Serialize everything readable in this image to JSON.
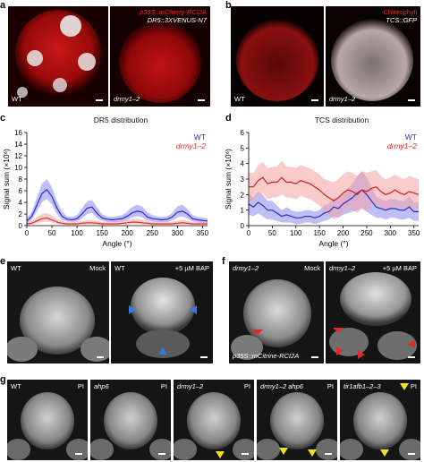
{
  "panels": {
    "a": {
      "label": "a",
      "left_label": "WT",
      "right_label": "drmy1–2",
      "marker_line1": "p35S::mCherry-RCI2A",
      "marker_line2": "DR5::3XVENUS-N7"
    },
    "b": {
      "label": "b",
      "left_label": "WT",
      "right_label": "drmy1–2",
      "marker_line1": "Chlorophyll",
      "marker_line2": "TCS::GFP"
    },
    "c": {
      "label": "c"
    },
    "d": {
      "label": "d"
    },
    "e": {
      "label": "e",
      "left_genotype": "WT",
      "left_treatment": "Mock",
      "right_genotype": "WT",
      "right_treatment": "+5 µM BAP",
      "bottom_marker": "p35S::mCitrine-RCI2A",
      "arrow_color": "#3a78e0"
    },
    "f": {
      "label": "f",
      "left_genotype": "drmy1–2",
      "left_treatment": "Mock",
      "right_genotype": "drmy1–2",
      "right_treatment": "+5 µM BAP",
      "arrow_color": "#e02a2a"
    },
    "g": {
      "label": "g",
      "tiles": [
        {
          "genotype": "WT",
          "stain": "PI"
        },
        {
          "genotype": "ahp6",
          "stain": "PI"
        },
        {
          "genotype": "drmy1–2",
          "stain": "PI"
        },
        {
          "genotype": "drmy1–2 ahp6",
          "stain": "PI"
        },
        {
          "genotype": "tir1afb1–2–3",
          "stain": "PI"
        }
      ],
      "arrow_color": "#f0e020"
    }
  },
  "chart_data": [
    {
      "type": "line",
      "title": "DR5 distribution",
      "xlabel": "Angle (°)",
      "ylabel": "Signal sum (×10⁶)",
      "xlim": [
        0,
        360
      ],
      "ylim": [
        0,
        16
      ],
      "xticks": [
        0,
        50,
        100,
        150,
        200,
        250,
        300,
        350
      ],
      "yticks": [
        0,
        2,
        4,
        6,
        8,
        10,
        12,
        14,
        16
      ],
      "legend_position": "top-right",
      "series": [
        {
          "name": "WT",
          "color": "#2c2ccc",
          "band_color": "#8a8af0",
          "x": [
            0,
            10,
            20,
            30,
            40,
            50,
            60,
            70,
            80,
            90,
            100,
            110,
            120,
            130,
            140,
            150,
            160,
            170,
            180,
            190,
            200,
            210,
            220,
            230,
            240,
            250,
            260,
            270,
            280,
            290,
            300,
            310,
            320,
            330,
            340,
            350,
            360
          ],
          "y": [
            0.8,
            1.6,
            3.5,
            5.5,
            6.2,
            5.0,
            3.0,
            1.6,
            1.1,
            1.0,
            1.2,
            2.0,
            3.0,
            3.2,
            2.1,
            1.3,
            1.1,
            1.0,
            1.1,
            1.2,
            1.6,
            2.2,
            2.5,
            2.3,
            1.5,
            1.2,
            1.1,
            1.0,
            1.1,
            1.5,
            2.3,
            2.5,
            2.0,
            1.2,
            1.0,
            0.9,
            0.8
          ],
          "lower": [
            0.4,
            1.0,
            2.4,
            4.0,
            4.6,
            3.6,
            2.0,
            1.0,
            0.7,
            0.6,
            0.7,
            1.2,
            2.0,
            2.2,
            1.3,
            0.8,
            0.6,
            0.6,
            0.6,
            0.7,
            1.0,
            1.4,
            1.6,
            1.4,
            0.9,
            0.7,
            0.6,
            0.6,
            0.6,
            0.9,
            1.4,
            1.6,
            1.2,
            0.7,
            0.6,
            0.5,
            0.4
          ],
          "upper": [
            1.2,
            2.4,
            4.8,
            7.2,
            8.0,
            6.6,
            4.2,
            2.4,
            1.6,
            1.5,
            1.8,
            3.0,
            4.2,
            4.4,
            3.1,
            2.0,
            1.6,
            1.5,
            1.6,
            1.8,
            2.4,
            3.2,
            3.6,
            3.3,
            2.3,
            1.8,
            1.6,
            1.5,
            1.6,
            2.2,
            3.3,
            3.6,
            2.9,
            1.8,
            1.5,
            1.4,
            1.2
          ]
        },
        {
          "name": "drmy1–2",
          "color": "#e03030",
          "band_color": "#f4a0a0",
          "x": [
            0,
            10,
            20,
            30,
            40,
            50,
            60,
            70,
            80,
            90,
            100,
            110,
            120,
            130,
            140,
            150,
            160,
            170,
            180,
            190,
            200,
            210,
            220,
            230,
            240,
            250,
            260,
            270,
            280,
            290,
            300,
            310,
            320,
            330,
            340,
            350,
            360
          ],
          "y": [
            0.3,
            0.4,
            0.8,
            1.2,
            1.3,
            1.0,
            0.6,
            0.4,
            0.3,
            0.3,
            0.3,
            0.4,
            0.5,
            0.5,
            0.4,
            0.3,
            0.3,
            0.3,
            0.3,
            0.4,
            0.5,
            0.6,
            0.6,
            0.5,
            0.4,
            0.3,
            0.3,
            0.3,
            0.3,
            0.3,
            0.4,
            0.5,
            0.4,
            0.3,
            0.3,
            0.3,
            0.3
          ],
          "lower": [
            0.1,
            0.2,
            0.4,
            0.6,
            0.7,
            0.5,
            0.3,
            0.2,
            0.1,
            0.1,
            0.1,
            0.2,
            0.2,
            0.2,
            0.2,
            0.1,
            0.1,
            0.1,
            0.1,
            0.2,
            0.2,
            0.3,
            0.3,
            0.2,
            0.2,
            0.1,
            0.1,
            0.1,
            0.1,
            0.1,
            0.2,
            0.2,
            0.2,
            0.1,
            0.1,
            0.1,
            0.1
          ],
          "upper": [
            0.6,
            0.8,
            1.5,
            2.0,
            2.2,
            1.7,
            1.1,
            0.8,
            0.6,
            0.6,
            0.7,
            0.8,
            1.0,
            1.0,
            0.8,
            0.6,
            0.6,
            0.6,
            0.7,
            0.8,
            1.0,
            1.1,
            1.2,
            1.0,
            0.8,
            0.6,
            0.6,
            0.6,
            0.6,
            0.7,
            0.8,
            1.0,
            0.8,
            0.6,
            0.6,
            0.6,
            0.6
          ]
        }
      ]
    },
    {
      "type": "line",
      "title": "TCS distribution",
      "xlabel": "Angle (°)",
      "ylabel": "Signal sum (×10⁶)",
      "xlim": [
        0,
        360
      ],
      "ylim": [
        0,
        6
      ],
      "xticks": [
        0,
        50,
        100,
        150,
        200,
        250,
        300,
        350
      ],
      "yticks": [
        0,
        1,
        2,
        3,
        4,
        5,
        6
      ],
      "legend_position": "top-right",
      "series": [
        {
          "name": "WT",
          "color": "#2c2ccc",
          "band_color": "#8a8af0",
          "x": [
            0,
            10,
            20,
            30,
            40,
            50,
            60,
            70,
            80,
            90,
            100,
            110,
            120,
            130,
            140,
            150,
            160,
            170,
            180,
            190,
            200,
            210,
            220,
            230,
            240,
            250,
            260,
            270,
            280,
            290,
            300,
            310,
            320,
            330,
            340,
            350,
            360
          ],
          "y": [
            1.4,
            1.2,
            1.5,
            1.3,
            1.0,
            1.0,
            0.8,
            0.6,
            0.7,
            0.6,
            0.5,
            0.5,
            0.6,
            0.6,
            0.5,
            0.6,
            0.8,
            0.9,
            1.2,
            1.1,
            1.4,
            1.6,
            1.8,
            2.1,
            2.3,
            2.0,
            1.6,
            1.2,
            1.1,
            1.0,
            1.1,
            1.1,
            1.0,
            1.0,
            1.2,
            0.9,
            0.9
          ],
          "lower": [
            0.7,
            0.6,
            0.8,
            0.6,
            0.4,
            0.4,
            0.3,
            0.2,
            0.2,
            0.2,
            0.1,
            0.1,
            0.2,
            0.2,
            0.1,
            0.2,
            0.3,
            0.4,
            0.6,
            0.5,
            0.7,
            0.8,
            0.9,
            1.0,
            1.1,
            0.9,
            0.7,
            0.5,
            0.5,
            0.4,
            0.5,
            0.5,
            0.4,
            0.4,
            0.5,
            0.3,
            0.3
          ],
          "upper": [
            2.1,
            1.8,
            2.2,
            2.0,
            1.6,
            1.6,
            1.3,
            1.0,
            1.2,
            1.0,
            0.9,
            0.9,
            1.0,
            1.0,
            0.9,
            1.0,
            1.3,
            1.4,
            1.8,
            1.7,
            2.1,
            2.4,
            2.7,
            3.2,
            3.5,
            3.1,
            2.5,
            1.9,
            1.7,
            1.6,
            1.7,
            1.7,
            1.6,
            1.6,
            1.9,
            1.5,
            1.5
          ]
        },
        {
          "name": "drmy1–2",
          "color": "#d02020",
          "band_color": "#f4a0a0",
          "x": [
            0,
            10,
            20,
            30,
            40,
            50,
            60,
            70,
            80,
            90,
            100,
            110,
            120,
            130,
            140,
            150,
            160,
            170,
            180,
            190,
            200,
            210,
            220,
            230,
            240,
            250,
            260,
            270,
            280,
            290,
            300,
            310,
            320,
            330,
            340,
            350,
            360
          ],
          "y": [
            2.5,
            2.5,
            2.9,
            3.1,
            2.7,
            2.8,
            2.8,
            3.1,
            2.8,
            2.8,
            2.7,
            2.9,
            2.8,
            2.7,
            2.5,
            2.3,
            2.0,
            1.8,
            1.6,
            1.8,
            2.1,
            2.3,
            2.2,
            2.0,
            2.3,
            2.2,
            2.4,
            2.5,
            2.2,
            2.0,
            2.1,
            2.3,
            2.1,
            2.0,
            2.2,
            2.1,
            2.0
          ],
          "lower": [
            1.6,
            1.6,
            1.9,
            2.1,
            1.7,
            1.8,
            1.8,
            2.0,
            1.8,
            1.8,
            1.7,
            1.9,
            1.8,
            1.7,
            1.5,
            1.3,
            1.0,
            0.7,
            0.4,
            0.6,
            0.9,
            1.1,
            1.0,
            0.8,
            1.1,
            1.0,
            1.3,
            1.4,
            1.2,
            1.0,
            1.1,
            1.3,
            1.1,
            1.0,
            1.2,
            1.1,
            1.0
          ],
          "upper": [
            3.4,
            3.4,
            3.9,
            4.1,
            3.7,
            3.8,
            3.8,
            4.2,
            3.8,
            3.8,
            3.7,
            3.9,
            3.8,
            3.7,
            3.5,
            3.3,
            3.0,
            2.9,
            2.8,
            3.0,
            3.3,
            3.5,
            3.4,
            3.2,
            3.5,
            3.4,
            3.5,
            3.6,
            3.2,
            3.0,
            3.1,
            3.3,
            3.1,
            3.0,
            3.2,
            3.1,
            3.0
          ]
        }
      ]
    }
  ]
}
